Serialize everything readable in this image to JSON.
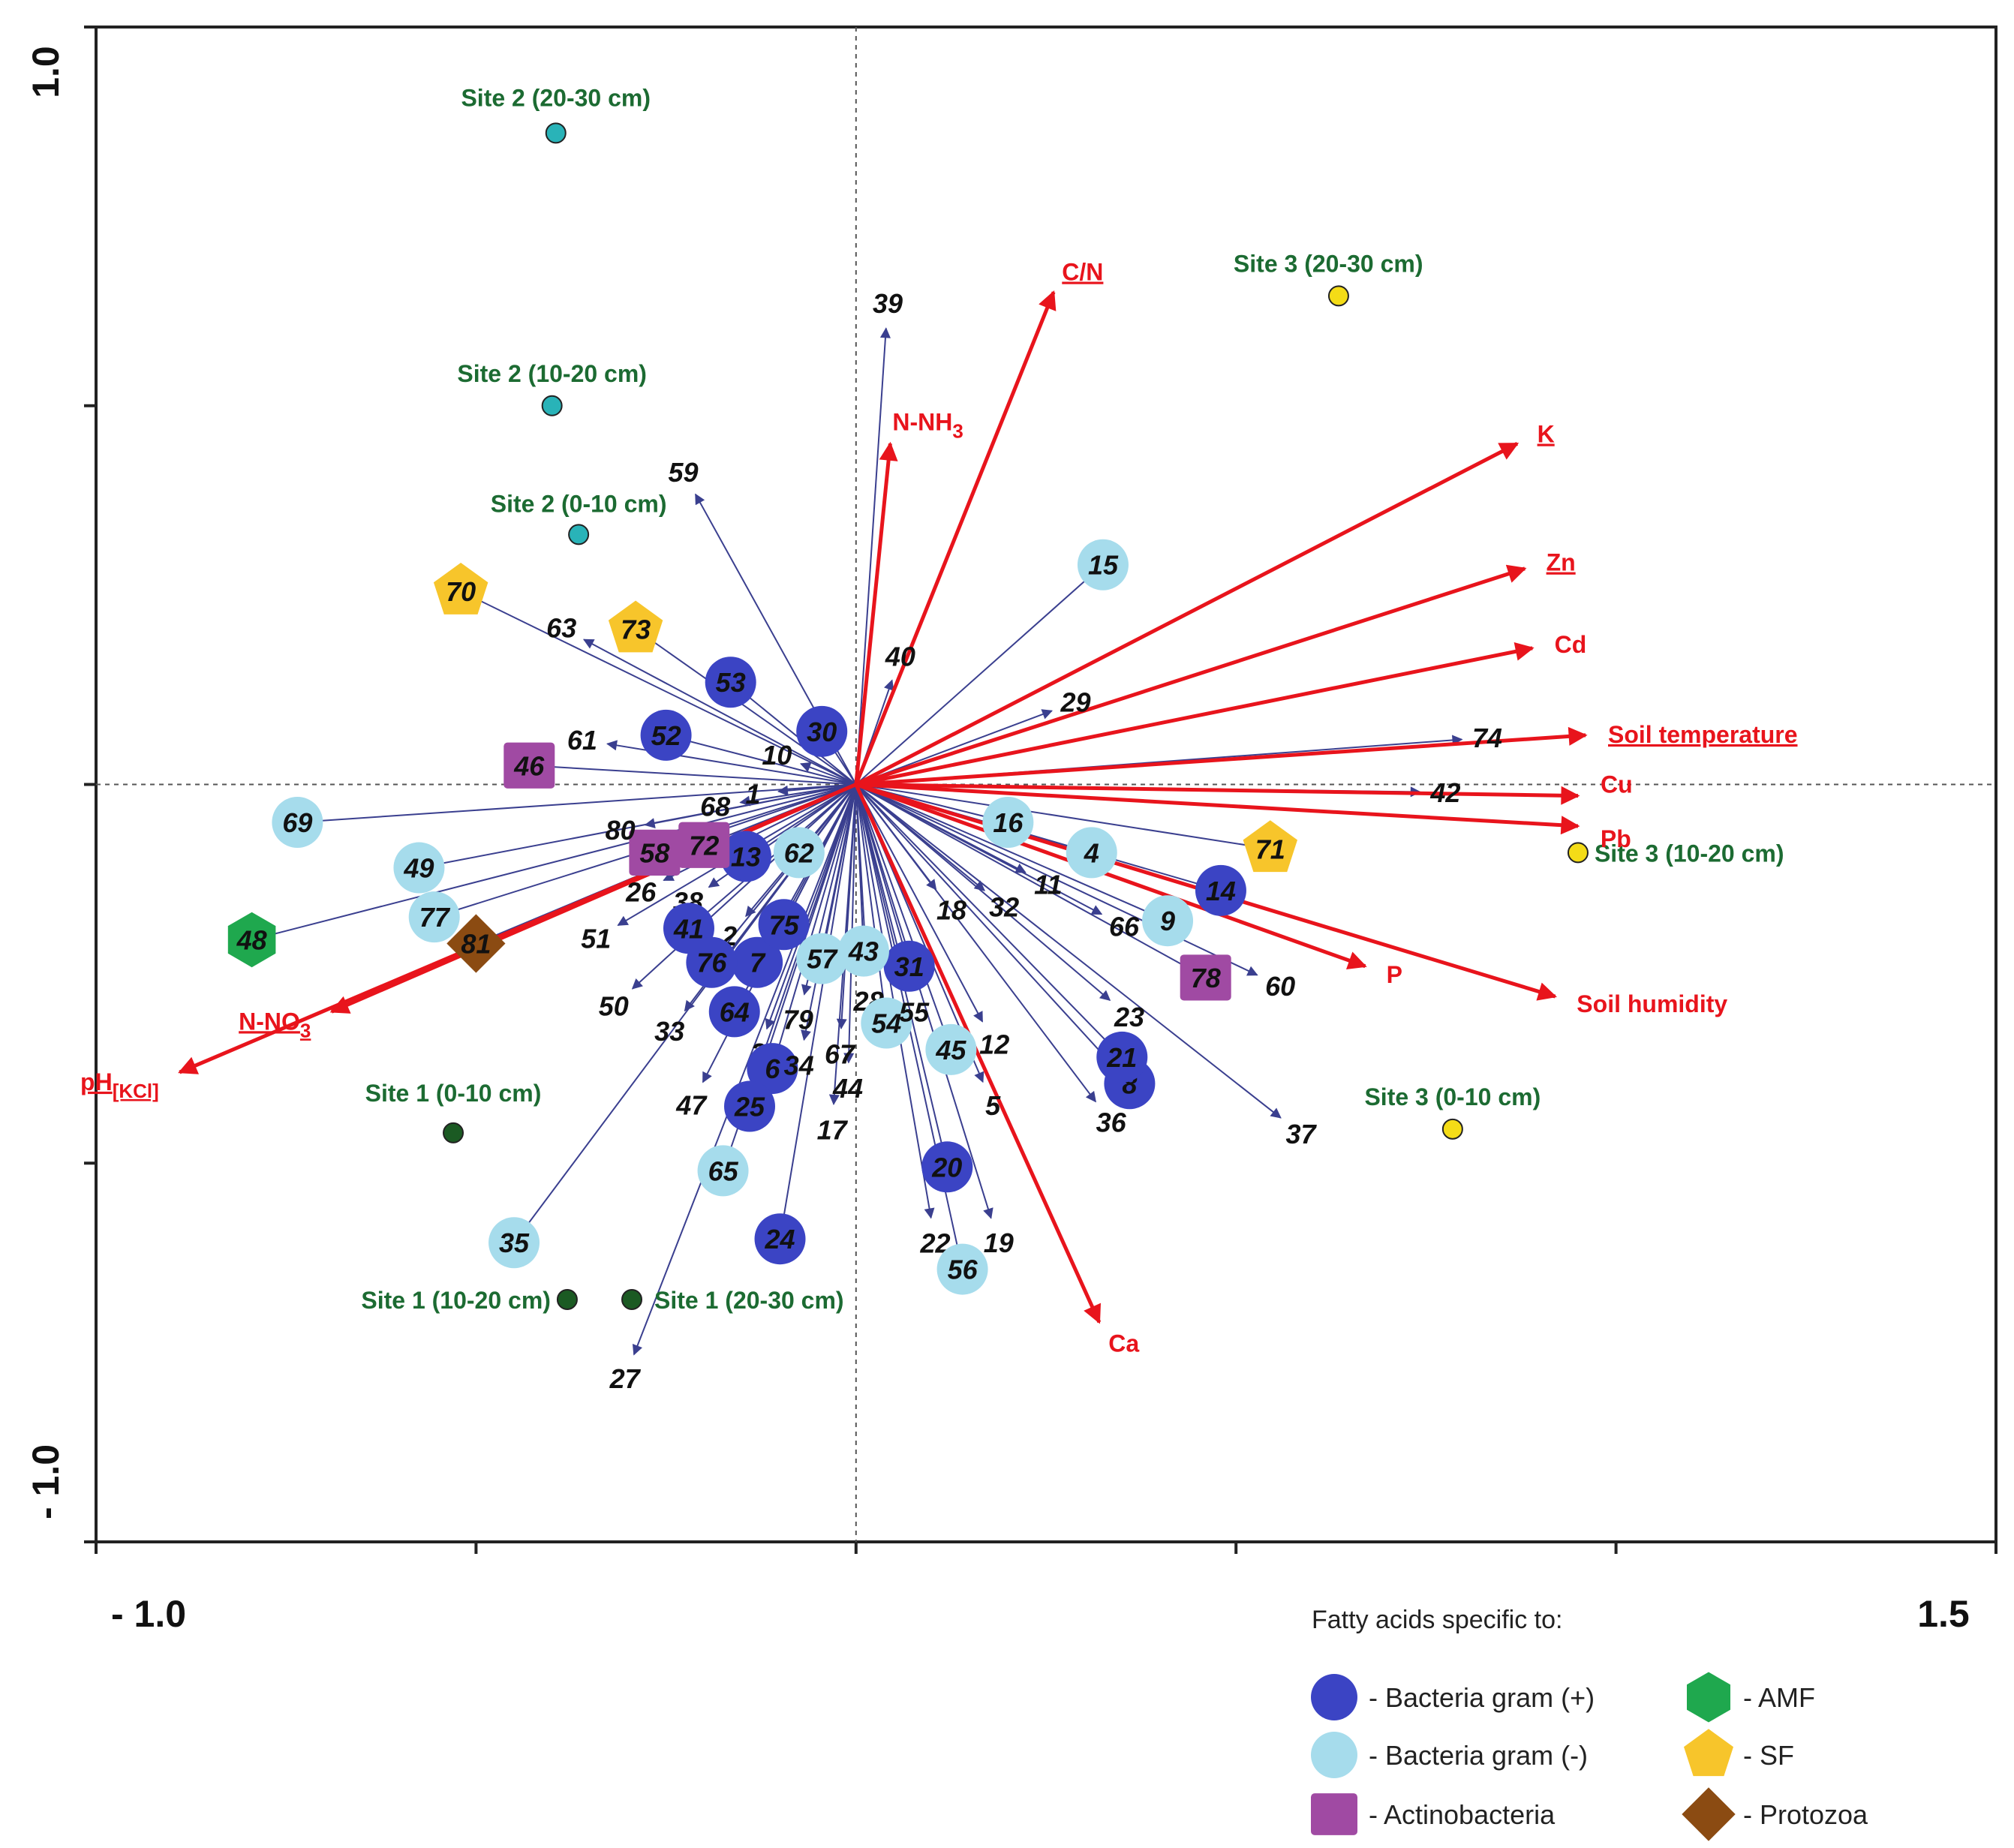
{
  "chart_data": {
    "type": "scatter",
    "subtype": "ordination biplot",
    "title": "",
    "xlabel": "",
    "ylabel": "",
    "xlim": [
      -1.0,
      1.5
    ],
    "ylim": [
      -1.0,
      1.0
    ],
    "x_tick_labels": [
      "- 1.0",
      "1.5"
    ],
    "y_tick_labels": [
      "1.0",
      "- 1.0"
    ],
    "grid": false,
    "zero_lines": "dashed",
    "colors": {
      "environment_vector": "#e8141c",
      "fatty_acid_vector": "#3a3f8f",
      "gram_pos": "#3b44c4",
      "gram_neg": "#a6dcec",
      "actino": "#a04aa3",
      "amf": "#1fa84e",
      "sf": "#f7c52b",
      "protozoa": "#8b4b12",
      "site1": "#1b5a23",
      "site2": "#29b3b8",
      "site3": "#f4dc17",
      "site_label": "#1c6b32"
    },
    "environment_vectors": [
      {
        "label": "C/N",
        "x": 0.26,
        "y": 0.65,
        "underline": true
      },
      {
        "label": "N-NH",
        "sub": "3",
        "x": 0.045,
        "y": 0.45,
        "underline": false
      },
      {
        "label": "K",
        "x": 0.87,
        "y": 0.45,
        "underline": true
      },
      {
        "label": "Zn",
        "x": 0.88,
        "y": 0.285,
        "underline": true
      },
      {
        "label": "Cd",
        "x": 0.89,
        "y": 0.18,
        "underline": false
      },
      {
        "label": "Soil temperature",
        "x": 0.96,
        "y": 0.065,
        "underline": true
      },
      {
        "label": "Cu",
        "x": 0.95,
        "y": -0.015,
        "underline": false
      },
      {
        "label": "Pb",
        "x": 0.95,
        "y": -0.055,
        "underline": false
      },
      {
        "label": "P",
        "x": 0.67,
        "y": -0.24,
        "underline": false
      },
      {
        "label": "Soil humidity",
        "x": 0.92,
        "y": -0.28,
        "underline": false
      },
      {
        "label": "Ca",
        "x": 0.32,
        "y": -0.71,
        "underline": false
      },
      {
        "label": "N-NO",
        "sub": "3",
        "x": -0.69,
        "y": -0.3,
        "underline": true
      },
      {
        "label": "pH",
        "sub": "[KCl]",
        "x": -0.89,
        "y": -0.38,
        "underline": true
      }
    ],
    "sites": [
      {
        "label": "Site 1 (0-10 cm)",
        "x": -0.53,
        "y": -0.46,
        "group": "site1"
      },
      {
        "label": "Site 1 (10-20 cm)",
        "x": -0.38,
        "y": -0.68,
        "group": "site1"
      },
      {
        "label": "Site 1 (20-30 cm)",
        "x": -0.295,
        "y": -0.68,
        "group": "site1"
      },
      {
        "label": "Site 2 (0-10 cm)",
        "x": -0.365,
        "y": 0.33,
        "group": "site2"
      },
      {
        "label": "Site 2 (10-20 cm)",
        "x": -0.4,
        "y": 0.5,
        "group": "site2"
      },
      {
        "label": "Site 2 (20-30 cm)",
        "x": -0.395,
        "y": 0.86,
        "group": "site2"
      },
      {
        "label": "Site 3 (0-10 cm)",
        "x": 0.785,
        "y": -0.455,
        "group": "site3"
      },
      {
        "label": "Site 3 (10-20 cm)",
        "x": 0.95,
        "y": -0.09,
        "group": "site3"
      },
      {
        "label": "Site 3 (20-30 cm)",
        "x": 0.635,
        "y": 0.645,
        "group": "site3"
      }
    ],
    "fatty_acids": [
      {
        "id": "1",
        "x": -0.11,
        "y": -0.01,
        "group": "plain"
      },
      {
        "id": "2",
        "x": -0.15,
        "y": -0.18,
        "group": "plain"
      },
      {
        "id": "3",
        "x": -0.12,
        "y": -0.33,
        "group": "plain"
      },
      {
        "id": "4",
        "x": 0.31,
        "y": -0.09,
        "group": "gram_neg"
      },
      {
        "id": "5",
        "x": 0.17,
        "y": -0.4,
        "group": "plain"
      },
      {
        "id": "6",
        "x": -0.11,
        "y": -0.375,
        "group": "gram_pos"
      },
      {
        "id": "7",
        "x": -0.13,
        "y": -0.235,
        "group": "gram_pos"
      },
      {
        "id": "8",
        "x": 0.36,
        "y": -0.395,
        "group": "gram_pos"
      },
      {
        "id": "9",
        "x": 0.41,
        "y": -0.18,
        "group": "gram_neg"
      },
      {
        "id": "10",
        "x": -0.08,
        "y": 0.03,
        "group": "plain"
      },
      {
        "id": "11",
        "x": 0.23,
        "y": -0.12,
        "group": "plain"
      },
      {
        "id": "12",
        "x": 0.17,
        "y": -0.32,
        "group": "plain"
      },
      {
        "id": "13",
        "x": -0.145,
        "y": -0.095,
        "group": "gram_pos"
      },
      {
        "id": "14",
        "x": 0.48,
        "y": -0.14,
        "group": "gram_pos"
      },
      {
        "id": "15",
        "x": 0.325,
        "y": 0.29,
        "group": "gram_neg"
      },
      {
        "id": "16",
        "x": 0.2,
        "y": -0.05,
        "group": "gram_neg"
      },
      {
        "id": "17",
        "x": -0.03,
        "y": -0.43,
        "group": "plain"
      },
      {
        "id": "18",
        "x": 0.11,
        "y": -0.145,
        "group": "plain"
      },
      {
        "id": "19",
        "x": 0.18,
        "y": -0.58,
        "group": "plain"
      },
      {
        "id": "20",
        "x": 0.12,
        "y": -0.505,
        "group": "gram_pos"
      },
      {
        "id": "21",
        "x": 0.35,
        "y": -0.36,
        "group": "gram_pos"
      },
      {
        "id": "22",
        "x": 0.1,
        "y": -0.58,
        "group": "plain"
      },
      {
        "id": "23",
        "x": 0.34,
        "y": -0.29,
        "group": "plain"
      },
      {
        "id": "24",
        "x": -0.1,
        "y": -0.6,
        "group": "gram_pos"
      },
      {
        "id": "25",
        "x": -0.14,
        "y": -0.425,
        "group": "gram_pos"
      },
      {
        "id": "26",
        "x": -0.26,
        "y": -0.13,
        "group": "plain"
      },
      {
        "id": "27",
        "x": -0.295,
        "y": -0.76,
        "group": "plain"
      },
      {
        "id": "28",
        "x": 0.015,
        "y": -0.26,
        "group": "plain"
      },
      {
        "id": "29",
        "x": 0.265,
        "y": 0.1,
        "group": "plain"
      },
      {
        "id": "30",
        "x": -0.045,
        "y": 0.07,
        "group": "gram_pos"
      },
      {
        "id": "31",
        "x": 0.07,
        "y": -0.24,
        "group": "gram_pos"
      },
      {
        "id": "32",
        "x": 0.175,
        "y": -0.145,
        "group": "plain"
      },
      {
        "id": "33",
        "x": -0.23,
        "y": -0.305,
        "group": "plain"
      },
      {
        "id": "34",
        "x": -0.07,
        "y": -0.345,
        "group": "plain"
      },
      {
        "id": "35",
        "x": -0.45,
        "y": -0.605,
        "group": "gram_neg"
      },
      {
        "id": "36",
        "x": 0.32,
        "y": -0.425,
        "group": "plain"
      },
      {
        "id": "37",
        "x": 0.565,
        "y": -0.445,
        "group": "plain"
      },
      {
        "id": "38",
        "x": -0.2,
        "y": -0.14,
        "group": "plain"
      },
      {
        "id": "39",
        "x": 0.04,
        "y": 0.61,
        "group": "plain"
      },
      {
        "id": "40",
        "x": 0.05,
        "y": 0.145,
        "group": "plain"
      },
      {
        "id": "41",
        "x": -0.22,
        "y": -0.19,
        "group": "gram_pos"
      },
      {
        "id": "42",
        "x": 0.75,
        "y": -0.01,
        "group": "plain"
      },
      {
        "id": "43",
        "x": 0.01,
        "y": -0.22,
        "group": "gram_neg"
      },
      {
        "id": "44",
        "x": -0.01,
        "y": -0.375,
        "group": "plain"
      },
      {
        "id": "45",
        "x": 0.125,
        "y": -0.35,
        "group": "gram_neg"
      },
      {
        "id": "46",
        "x": -0.43,
        "y": 0.025,
        "group": "actino"
      },
      {
        "id": "47",
        "x": -0.205,
        "y": -0.4,
        "group": "plain"
      },
      {
        "id": "48",
        "x": -0.795,
        "y": -0.205,
        "group": "amf"
      },
      {
        "id": "49",
        "x": -0.575,
        "y": -0.11,
        "group": "gram_neg"
      },
      {
        "id": "50",
        "x": -0.3,
        "y": -0.275,
        "group": "plain"
      },
      {
        "id": "51",
        "x": -0.32,
        "y": -0.19,
        "group": "plain"
      },
      {
        "id": "52",
        "x": -0.25,
        "y": 0.065,
        "group": "gram_pos"
      },
      {
        "id": "53",
        "x": -0.165,
        "y": 0.135,
        "group": "gram_pos"
      },
      {
        "id": "54",
        "x": 0.04,
        "y": -0.315,
        "group": "gram_neg"
      },
      {
        "id": "55",
        "x": 0.07,
        "y": -0.275,
        "group": "plain"
      },
      {
        "id": "56",
        "x": 0.14,
        "y": -0.64,
        "group": "gram_neg"
      },
      {
        "id": "57",
        "x": -0.045,
        "y": -0.23,
        "group": "gram_neg"
      },
      {
        "id": "58",
        "x": -0.265,
        "y": -0.09,
        "group": "actino"
      },
      {
        "id": "59",
        "x": -0.215,
        "y": 0.39,
        "group": "plain"
      },
      {
        "id": "60",
        "x": 0.535,
        "y": -0.255,
        "group": "plain"
      },
      {
        "id": "61",
        "x": -0.335,
        "y": 0.055,
        "group": "plain"
      },
      {
        "id": "62",
        "x": -0.075,
        "y": -0.09,
        "group": "gram_neg"
      },
      {
        "id": "63",
        "x": -0.365,
        "y": 0.195,
        "group": "plain"
      },
      {
        "id": "64",
        "x": -0.16,
        "y": -0.3,
        "group": "gram_pos"
      },
      {
        "id": "65",
        "x": -0.175,
        "y": -0.51,
        "group": "gram_neg"
      },
      {
        "id": "66",
        "x": 0.33,
        "y": -0.175,
        "group": "plain"
      },
      {
        "id": "67",
        "x": -0.02,
        "y": -0.33,
        "group": "plain"
      },
      {
        "id": "68",
        "x": -0.16,
        "y": -0.025,
        "group": "plain"
      },
      {
        "id": "69",
        "x": -0.735,
        "y": -0.05,
        "group": "gram_neg"
      },
      {
        "id": "70",
        "x": -0.52,
        "y": 0.255,
        "group": "sf"
      },
      {
        "id": "71",
        "x": 0.545,
        "y": -0.085,
        "group": "sf"
      },
      {
        "id": "72",
        "x": -0.2,
        "y": -0.08,
        "group": "actino"
      },
      {
        "id": "73",
        "x": -0.29,
        "y": 0.205,
        "group": "sf"
      },
      {
        "id": "74",
        "x": 0.805,
        "y": 0.06,
        "group": "plain"
      },
      {
        "id": "75",
        "x": -0.095,
        "y": -0.185,
        "group": "gram_pos"
      },
      {
        "id": "76",
        "x": -0.19,
        "y": -0.235,
        "group": "gram_pos"
      },
      {
        "id": "77",
        "x": -0.555,
        "y": -0.175,
        "group": "gram_neg"
      },
      {
        "id": "78",
        "x": 0.46,
        "y": -0.255,
        "group": "actino"
      },
      {
        "id": "79",
        "x": -0.07,
        "y": -0.285,
        "group": "plain"
      },
      {
        "id": "80",
        "x": -0.285,
        "y": -0.055,
        "group": "plain"
      },
      {
        "id": "81",
        "x": -0.5,
        "y": -0.21,
        "group": "protozoa"
      }
    ],
    "legend": {
      "title": "Fatty acids specific to:",
      "placement": "bottom-right",
      "items": [
        {
          "group": "gram_pos",
          "label": "- Bacteria  gram (+)",
          "shape": "circle"
        },
        {
          "group": "gram_neg",
          "label": "- Bacteria  gram (-)",
          "shape": "circle"
        },
        {
          "group": "actino",
          "label": "- Actinobacteria",
          "shape": "square"
        },
        {
          "group": "amf",
          "label": "- AMF",
          "shape": "hexagon"
        },
        {
          "group": "sf",
          "label": "- SF",
          "shape": "pentagon"
        },
        {
          "group": "protozoa",
          "label": "- Protozoa",
          "shape": "diamond"
        }
      ]
    }
  }
}
